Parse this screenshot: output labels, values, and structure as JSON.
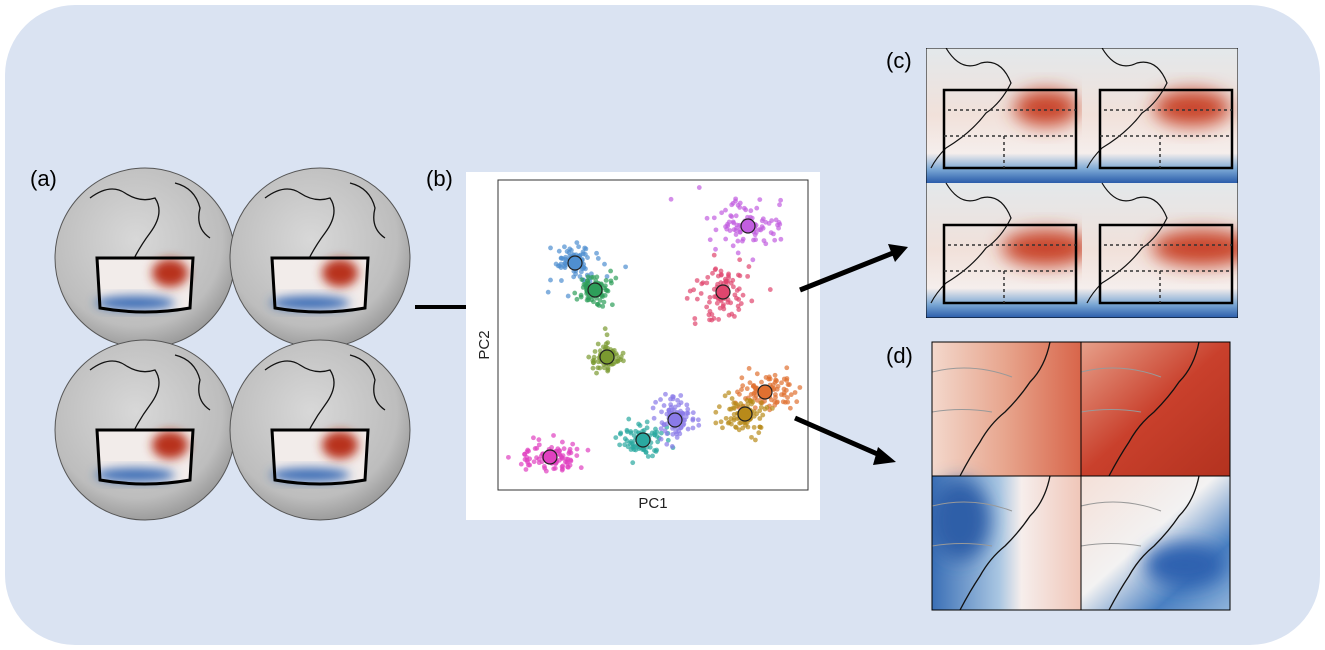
{
  "panel_a": {
    "label": "(a)"
  },
  "panel_b": {
    "label": "(b)",
    "x_label": "PC1",
    "y_label": "PC2"
  },
  "panel_c": {
    "label": "(c)"
  },
  "panel_d": {
    "label": "(d)"
  }
}
